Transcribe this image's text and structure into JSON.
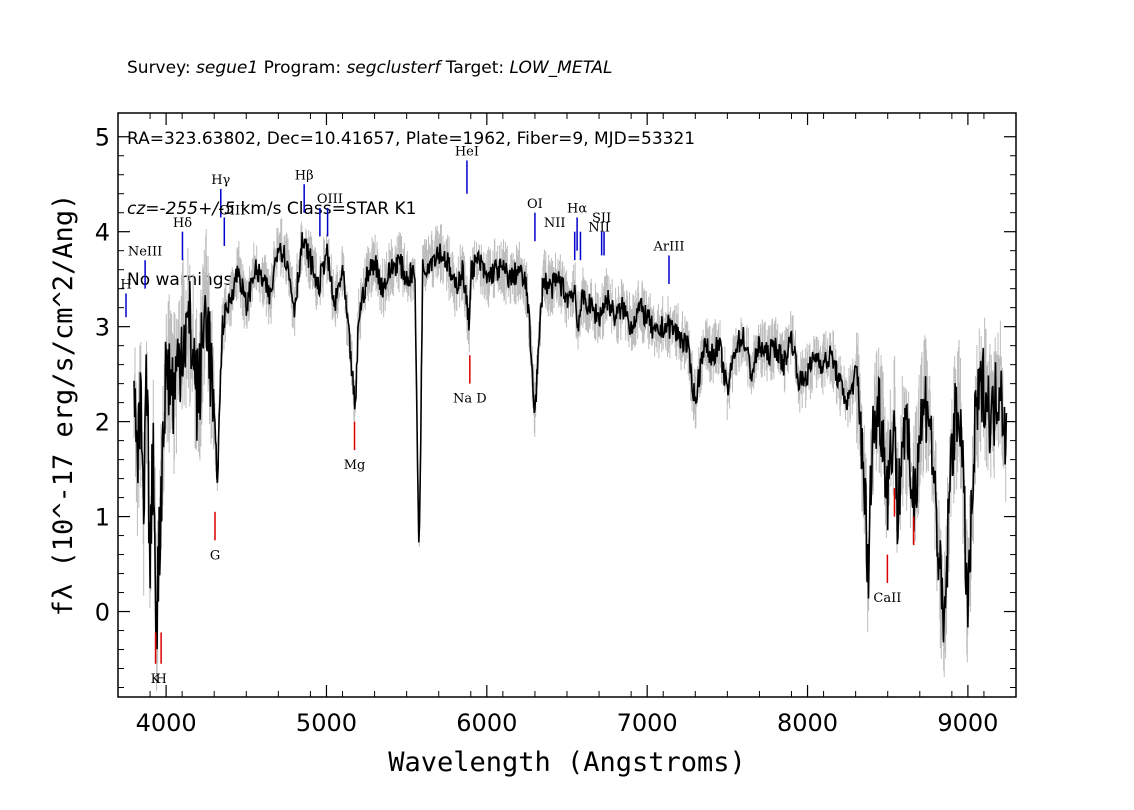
{
  "header": {
    "line1": {
      "survey_label": "Survey: ",
      "survey": "segue1",
      "program_label": " Program: ",
      "program": "segclusterf",
      "target_label": " Target: ",
      "target": "LOW_METAL"
    },
    "line2": "RA=323.63802, Dec=10.41657, Plate=1962, Fiber=9, MJD=53321",
    "line3": {
      "cz_label": "cz",
      "cz_eq": "=",
      "cz_value": "-255+/-5",
      "cz_rest": " km/s Class=STAR K1"
    },
    "line4": "No warnings."
  },
  "chart_data": {
    "type": "line",
    "xlabel": "Wavelength (Angstroms)",
    "ylabel": "fλ (10^-17 erg/s/cm^2/Ang)",
    "xlim": [
      3700,
      9300
    ],
    "ylim": [
      -0.9,
      5.25
    ],
    "xticks": [
      4000,
      5000,
      6000,
      7000,
      8000,
      9000
    ],
    "yticks": [
      0,
      1,
      2,
      3,
      4,
      5
    ],
    "series": [
      {
        "color": "#000000",
        "x": [
          3800,
          3820,
          3840,
          3860,
          3880,
          3900,
          3920,
          3940,
          3960,
          3980,
          4000,
          4050,
          4100,
          4150,
          4200,
          4250,
          4300,
          4320,
          4350,
          4400,
          4450,
          4500,
          4550,
          4600,
          4650,
          4700,
          4750,
          4800,
          4850,
          4900,
          4950,
          5000,
          5050,
          5100,
          5150,
          5180,
          5200,
          5250,
          5300,
          5350,
          5400,
          5450,
          5500,
          5550,
          5578,
          5600,
          5650,
          5700,
          5750,
          5800,
          5850,
          5890,
          5900,
          5950,
          6000,
          6050,
          6100,
          6150,
          6200,
          6250,
          6300,
          6350,
          6400,
          6450,
          6500,
          6550,
          6563,
          6600,
          6650,
          6700,
          6750,
          6800,
          6850,
          6900,
          6950,
          7000,
          7050,
          7100,
          7150,
          7200,
          7250,
          7300,
          7350,
          7400,
          7450,
          7500,
          7550,
          7600,
          7650,
          7700,
          7750,
          7800,
          7850,
          7900,
          7950,
          8000,
          8050,
          8100,
          8150,
          8200,
          8250,
          8300,
          8350,
          8380,
          8400,
          8450,
          8500,
          8542,
          8560,
          8600,
          8662,
          8700,
          8750,
          8800,
          8850,
          8900,
          8950,
          9000,
          9050,
          9100,
          9150,
          9200,
          9240
        ],
        "y": [
          2.6,
          1.3,
          2.2,
          0.9,
          2.5,
          0.4,
          1.8,
          -0.1,
          0.8,
          1.9,
          2.6,
          2.3,
          2.9,
          3.0,
          2.2,
          3.3,
          2.0,
          1.4,
          3.0,
          3.3,
          3.6,
          3.2,
          3.6,
          3.5,
          3.3,
          3.9,
          3.7,
          3.2,
          3.9,
          3.7,
          3.4,
          3.8,
          3.2,
          3.6,
          2.7,
          2.1,
          3.1,
          3.5,
          3.7,
          3.4,
          3.6,
          3.7,
          3.5,
          3.6,
          0.55,
          3.6,
          3.7,
          3.8,
          3.7,
          3.4,
          3.6,
          3.0,
          3.6,
          3.7,
          3.5,
          3.6,
          3.6,
          3.5,
          3.6,
          3.4,
          2.1,
          3.5,
          3.4,
          3.5,
          3.3,
          3.4,
          3.0,
          3.3,
          3.2,
          3.1,
          3.3,
          3.1,
          3.2,
          3.0,
          3.2,
          3.1,
          2.9,
          3.0,
          3.0,
          2.9,
          2.8,
          2.2,
          2.8,
          2.7,
          2.8,
          2.3,
          2.8,
          2.9,
          2.5,
          2.8,
          2.7,
          2.8,
          2.6,
          2.9,
          2.4,
          2.5,
          2.7,
          2.6,
          2.7,
          2.4,
          2.2,
          2.5,
          1.6,
          0.2,
          1.8,
          2.2,
          1.3,
          2.1,
          1.0,
          2.0,
          1.2,
          1.9,
          2.3,
          1.1,
          -0.3,
          1.8,
          2.2,
          0.0,
          2.1,
          2.4,
          2.0,
          2.5,
          1.8
        ]
      }
    ],
    "lines": [
      {
        "label": "H",
        "x": 3750,
        "color": "#0000cc",
        "y0": 3.1,
        "y1": 3.35,
        "label_y": 3.4
      },
      {
        "label": "NeIII",
        "x": 3869,
        "color": "#0000cc",
        "y0": 3.4,
        "y1": 3.7,
        "label_y": 3.75
      },
      {
        "label": "Hδ",
        "x": 4102,
        "color": "#0000cc",
        "y0": 3.7,
        "y1": 4.0,
        "label_y": 4.05
      },
      {
        "label": "Hγ",
        "x": 4341,
        "color": "#0000cc",
        "y0": 4.15,
        "y1": 4.45,
        "label_y": 4.5
      },
      {
        "label": "OIII",
        "x": 4363,
        "color": "#0000cc",
        "y0": 3.85,
        "y1": 4.15,
        "label_y": 4.18,
        "offset": 8
      },
      {
        "label": "Hβ",
        "x": 4861,
        "color": "#0000cc",
        "y0": 4.2,
        "y1": 4.5,
        "label_y": 4.55
      },
      {
        "label": "OIII",
        "x": 4959,
        "color": "#0000cc",
        "y0": 3.95,
        "y1": 4.25,
        "label_y": 4.3,
        "offset": 10
      },
      {
        "label": "OIII",
        "x": 5007,
        "color": "#0000cc",
        "y0": 3.95,
        "y1": 4.25,
        "label_y": null
      },
      {
        "label": "HeI",
        "x": 5876,
        "color": "#0000cc",
        "y0": 4.4,
        "y1": 4.75,
        "label_y": 4.8
      },
      {
        "label": "OI",
        "x": 6300,
        "color": "#0000cc",
        "y0": 3.9,
        "y1": 4.2,
        "label_y": 4.25
      },
      {
        "label": "NII",
        "x": 6548,
        "color": "#0000cc",
        "y0": 3.7,
        "y1": 4.0,
        "label_y": 4.05,
        "offset": -20
      },
      {
        "label": "Hα",
        "x": 6563,
        "color": "#0000cc",
        "y0": 3.8,
        "y1": 4.15,
        "label_y": 4.2
      },
      {
        "label": "NII",
        "x": 6584,
        "color": "#0000cc",
        "y0": 3.7,
        "y1": 4.0,
        "label_y": null
      },
      {
        "label": "SII",
        "x": 6716,
        "color": "#0000cc",
        "y0": 3.75,
        "y1": 4.0,
        "label_y": 4.1
      },
      {
        "label": "NII",
        "x": 6731,
        "color": "#0000cc",
        "y0": 3.75,
        "y1": 4.0,
        "label_y": 4.0,
        "offset": -5
      },
      {
        "label": "ArIII",
        "x": 7136,
        "color": "#0000cc",
        "y0": 3.45,
        "y1": 3.75,
        "label_y": 3.8
      },
      {
        "label": "K",
        "x": 3934,
        "color": "#dd0000",
        "y0": -0.55,
        "y1": -0.22,
        "label_y": -0.75
      },
      {
        "label": "H",
        "x": 3969,
        "color": "#dd0000",
        "y0": -0.55,
        "y1": -0.22,
        "label_y": -0.75
      },
      {
        "label": "G",
        "x": 4305,
        "color": "#dd0000",
        "y0": 0.75,
        "y1": 1.05,
        "label_y": 0.55
      },
      {
        "label": "Mg",
        "x": 5175,
        "color": "#dd0000",
        "y0": 1.7,
        "y1": 2.0,
        "label_y": 1.5
      },
      {
        "label": "Na D",
        "x": 5894,
        "color": "#dd0000",
        "y0": 2.4,
        "y1": 2.7,
        "label_y": 2.2
      },
      {
        "label": "CaII",
        "x": 8498,
        "color": "#dd0000",
        "y0": 0.3,
        "y1": 0.6,
        "label_y": 0.1
      },
      {
        "label": "CaII",
        "x": 8542,
        "color": "#dd0000",
        "y0": 1.0,
        "y1": 1.3,
        "label_y": null
      },
      {
        "label": "CaII",
        "x": 8662,
        "color": "#dd0000",
        "y0": 0.7,
        "y1": 1.0,
        "label_y": null
      }
    ]
  }
}
